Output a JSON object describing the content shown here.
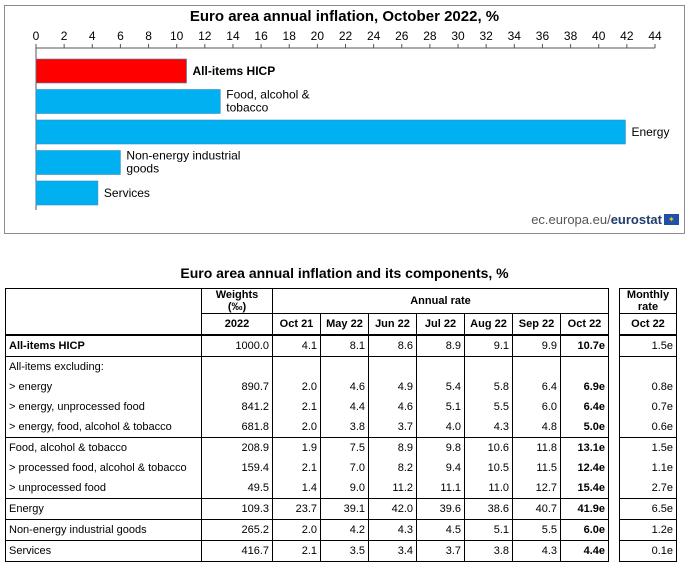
{
  "chart_data": {
    "type": "bar",
    "orientation": "horizontal",
    "title": "Euro area annual inflation, October 2022, %",
    "categories": [
      "All-items HICP",
      "Food, alcohol & tobacco",
      "Energy",
      "Non-energy industrial goods",
      "Services"
    ],
    "category_labels": [
      [
        "All-items HICP"
      ],
      [
        "Food, alcohol &",
        "tobacco"
      ],
      [
        "Energy"
      ],
      [
        "Non-energy industrial",
        "goods"
      ],
      [
        "Services"
      ]
    ],
    "values": [
      10.7,
      13.1,
      41.9,
      6.0,
      4.4
    ],
    "bar_colors": [
      "#ff0000",
      "#00b0f0",
      "#00b0f0",
      "#00b0f0",
      "#00b0f0"
    ],
    "bold_category": "All-items HICP",
    "xlim": [
      0,
      44
    ],
    "xticks": [
      0,
      2,
      4,
      6,
      8,
      10,
      12,
      14,
      16,
      18,
      20,
      22,
      24,
      26,
      28,
      30,
      32,
      34,
      36,
      38,
      40,
      42,
      44
    ],
    "axis_position": "top",
    "grid": false,
    "legend": "none"
  },
  "source": {
    "prefix": "ec.europa.eu/",
    "brand": "eurostat"
  },
  "table": {
    "title": "Euro area annual inflation and its components, %",
    "header": {
      "weights": "Weights",
      "weights_unit": "(‰)",
      "annual_rate": "Annual rate",
      "monthly_rate_line1": "Monthly",
      "monthly_rate_line2": "rate",
      "weights_year": "2022",
      "months": [
        "Oct 21",
        "May 22",
        "Jun 22",
        "Jul 22",
        "Aug 22",
        "Sep 22",
        "Oct 22"
      ],
      "monthly_month": "Oct 22"
    },
    "rows": [
      {
        "label": "All-items HICP",
        "weight": "1000.0",
        "rates": [
          "4.1",
          "8.1",
          "8.6",
          "8.9",
          "9.1",
          "9.9",
          "10.7e"
        ],
        "monthly": "1.5e"
      },
      {
        "label": "All-items excluding:",
        "weight": "",
        "rates": [
          "",
          "",
          "",
          "",
          "",
          "",
          ""
        ],
        "monthly": ""
      },
      {
        "label": "> energy",
        "weight": "890.7",
        "rates": [
          "2.0",
          "4.6",
          "4.9",
          "5.4",
          "5.8",
          "6.4",
          "6.9e"
        ],
        "monthly": "0.8e"
      },
      {
        "label": "> energy, unprocessed food",
        "weight": "841.2",
        "rates": [
          "2.1",
          "4.4",
          "4.6",
          "5.1",
          "5.5",
          "6.0",
          "6.4e"
        ],
        "monthly": "0.7e"
      },
      {
        "label": "> energy, food, alcohol & tobacco",
        "weight": "681.8",
        "rates": [
          "2.0",
          "3.8",
          "3.7",
          "4.0",
          "4.3",
          "4.8",
          "5.0e"
        ],
        "monthly": "0.6e"
      },
      {
        "label": "Food, alcohol & tobacco",
        "weight": "208.9",
        "rates": [
          "1.9",
          "7.5",
          "8.9",
          "9.8",
          "10.6",
          "11.8",
          "13.1e"
        ],
        "monthly": "1.5e"
      },
      {
        "label": "> processed food, alcohol & tobacco",
        "weight": "159.4",
        "rates": [
          "2.1",
          "7.0",
          "8.2",
          "9.4",
          "10.5",
          "11.5",
          "12.4e"
        ],
        "monthly": "1.1e"
      },
      {
        "label": "> unprocessed food",
        "weight": "49.5",
        "rates": [
          "1.4",
          "9.0",
          "11.2",
          "11.1",
          "11.0",
          "12.7",
          "15.4e"
        ],
        "monthly": "2.7e"
      },
      {
        "label": "Energy",
        "weight": "109.3",
        "rates": [
          "23.7",
          "39.1",
          "42.0",
          "39.6",
          "38.6",
          "40.7",
          "41.9e"
        ],
        "monthly": "6.5e"
      },
      {
        "label": "Non-energy industrial goods",
        "weight": "265.2",
        "rates": [
          "2.0",
          "4.2",
          "4.3",
          "4.5",
          "5.1",
          "5.5",
          "6.0e"
        ],
        "monthly": "1.2e"
      },
      {
        "label": "Services",
        "weight": "416.7",
        "rates": [
          "2.1",
          "3.5",
          "3.4",
          "3.7",
          "3.8",
          "4.3",
          "4.4e"
        ],
        "monthly": "0.1e"
      }
    ]
  }
}
